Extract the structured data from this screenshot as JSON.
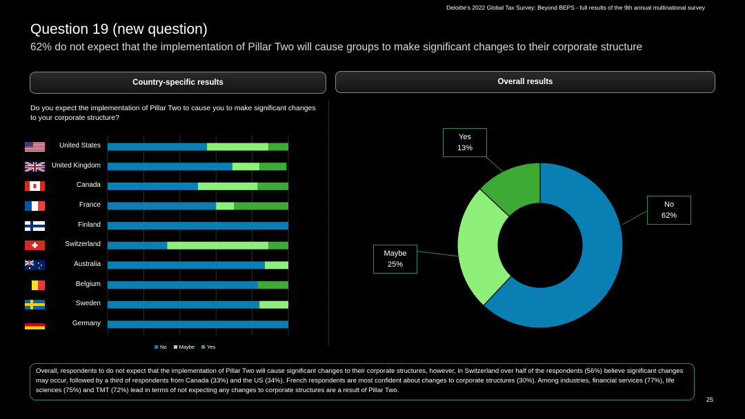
{
  "header": {
    "source": "Deloitte’s 2022 Global Tax Survey: Beyond BEPS  - full results of the 9th annual multinational survey",
    "title": "Question 19 (new question)",
    "subtitle": "62% do not expect that the implementation of Pillar Two will cause groups to make significant changes to their corporate structure"
  },
  "panels": {
    "left_title": "Country-specific results",
    "right_title": "Overall results"
  },
  "question": "Do you expect the implementation of Pillar Two to cause you to make significant changes to your corporate structure?",
  "colors": {
    "No": "#0a7fb4",
    "Maybe": "#8ef07a",
    "Yes": "#3daa35"
  },
  "chart_data": [
    {
      "type": "bar",
      "orientation": "horizontal",
      "stacked": true,
      "unit": "percent",
      "categories": [
        "United States",
        "United Kingdom",
        "Canada",
        "France",
        "Finland",
        "Switzerland",
        "Australia",
        "Belgium",
        "Sweden",
        "Germany"
      ],
      "series": [
        {
          "name": "No",
          "values": [
            55,
            69,
            50,
            60,
            100,
            33,
            87,
            83,
            84,
            100
          ]
        },
        {
          "name": "Maybe",
          "values": [
            34,
            15,
            33,
            10,
            0,
            56,
            13,
            0,
            16,
            0
          ]
        },
        {
          "name": "Yes",
          "values": [
            11,
            15,
            17,
            30,
            0,
            11,
            0,
            17,
            0,
            0
          ]
        }
      ],
      "xlim": [
        0,
        100
      ],
      "grid": true,
      "legend": "bottom"
    },
    {
      "type": "pie",
      "donut": true,
      "labels": [
        "No",
        "Maybe",
        "Yes"
      ],
      "values": [
        62,
        25,
        13
      ],
      "callouts": [
        "No\n62%",
        "Maybe\n25%",
        "Yes\n13%"
      ]
    }
  ],
  "callouts": {
    "yes": [
      "Yes",
      "13%"
    ],
    "no": [
      "No",
      "62%"
    ],
    "maybe": [
      "Maybe",
      "25%"
    ]
  },
  "flags": [
    "us-flag",
    "uk-flag",
    "canada-flag",
    "france-flag",
    "finland-flag",
    "switzerland-flag",
    "australia-flag",
    "belgium-flag",
    "sweden-flag",
    "germany-flag"
  ],
  "summary": "Overall, respondents to do not expect that the implementation of Pillar Two will cause significant changes to their corporate structures, however, in Switzerland over half of the respondents (56%) believe significant changes may occur, followed by a third of respondents from Canada (33%) and the US (34%). French respondents are most confident about changes to corporate structures (30%). Among industries, financial services (77%), life sciences (75%) and TMT (72%) lead in terms of not expecting any changes to corporate structures are a result of Pillar Two.",
  "page_number": "25"
}
